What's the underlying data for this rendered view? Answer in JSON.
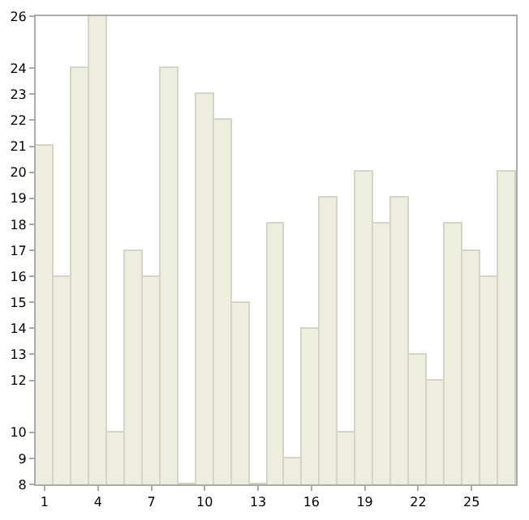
{
  "chart_data": {
    "type": "bar",
    "x": [
      1,
      2,
      3,
      4,
      5,
      6,
      7,
      8,
      9,
      10,
      11,
      12,
      13,
      14,
      15,
      16,
      17,
      18,
      19,
      20,
      21,
      22,
      23,
      24,
      25,
      26,
      27
    ],
    "values": [
      21,
      16,
      24,
      26,
      10,
      17,
      16,
      24,
      8,
      23,
      22,
      15,
      8,
      18,
      9,
      14,
      19,
      10,
      20,
      18,
      19,
      13,
      12,
      18,
      17,
      16,
      20
    ],
    "color": "#eeeedf",
    "xlim": [
      0.5,
      27.5
    ],
    "xticks": [
      1,
      4,
      7,
      10,
      13,
      16,
      19,
      22,
      25
    ],
    "ylim": [
      8,
      26
    ],
    "yticks": [
      8,
      9,
      10,
      12,
      13,
      14,
      15,
      16,
      17,
      18,
      19,
      20,
      21,
      22,
      23,
      24,
      26
    ]
  }
}
